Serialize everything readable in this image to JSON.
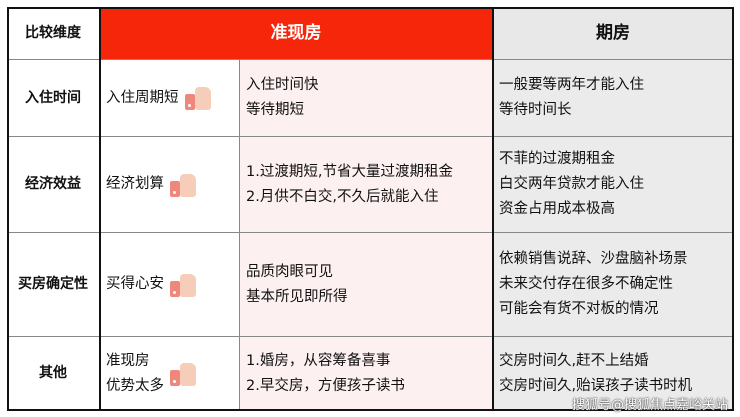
{
  "header": {
    "dimension": "比较维度",
    "ready": "准现房",
    "future": "期房"
  },
  "colors": {
    "ready_header": "#f5260a",
    "ready_bg": "#fdf0f0",
    "future_bg": "#ebebeb"
  },
  "rows": [
    {
      "label": "入住时间",
      "summary": [
        "入住周期短"
      ],
      "ready": [
        "入住时间快",
        "等待期短"
      ],
      "future": [
        "一般要等两年才能入住",
        "等待时间长"
      ]
    },
    {
      "label": "经济效益",
      "summary": [
        "经济划算"
      ],
      "ready": [
        "1.过渡期短,节省大量过渡期租金",
        "2.月供不白交,不久后就能入住"
      ],
      "future": [
        "不菲的过渡期租金",
        "白交两年贷款才能入住",
        "资金占用成本极高"
      ]
    },
    {
      "label": "买房确定性",
      "summary": [
        "买得心安"
      ],
      "ready": [
        "品质肉眼可见",
        "基本所见即所得"
      ],
      "future": [
        "依赖销售说辞、沙盘脑补场景",
        "未来交付存在很多不确定性",
        "可能会有货不对板的情况"
      ]
    },
    {
      "label": "其他",
      "summary": [
        "准现房",
        "优势太多"
      ],
      "ready": [
        "1.婚房，从容筹备喜事",
        "2.早交房，方便孩子读书"
      ],
      "future": [
        "交房时间久,赶不上结婚",
        "交房时间久,贻误孩子读书时机"
      ]
    }
  ],
  "icons": {
    "summary": "thumbs-up-icon"
  },
  "watermark": "搜狐号@搜狐焦点嘉峪关站"
}
